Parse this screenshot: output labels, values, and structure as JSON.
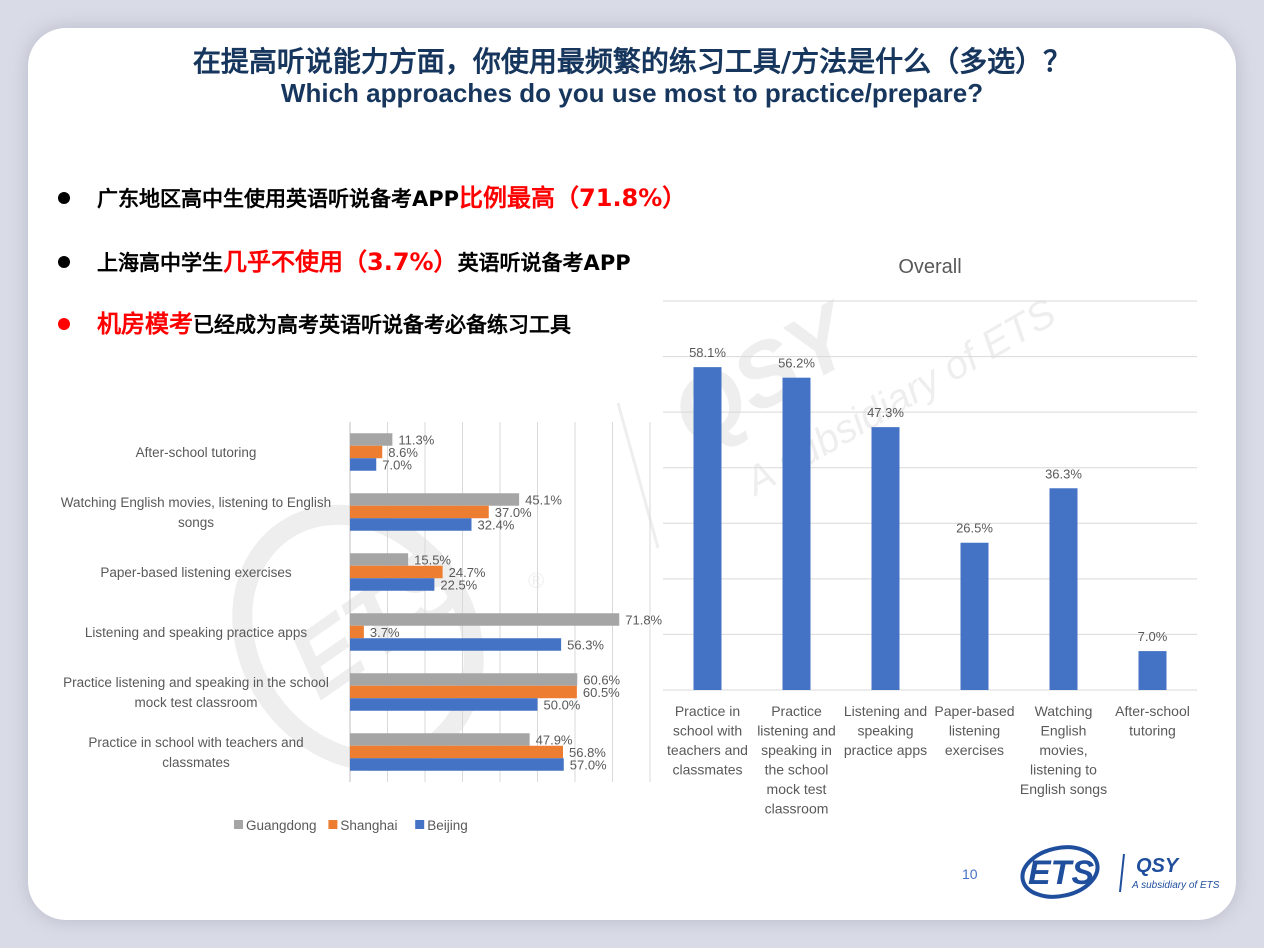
{
  "slide": {
    "title_zh": "在提高听说能力方面，你使用最频繁的练习工具/方法是什么（多选）？",
    "title_en": "Which approaches do you use most to practice/prepare?",
    "page_number": "10"
  },
  "bullets": [
    {
      "pre": "广东地区高中生使用英语听说备考APP",
      "hl": "比例最高（71.8%）",
      "post": "",
      "dot_color": "#000000"
    },
    {
      "pre": "上海高中学生",
      "hl": "几乎不使用（3.7%）",
      "post": "英语听说备考APP",
      "dot_color": "#000000"
    },
    {
      "pre": "",
      "hl": "机房模考",
      "post": "已经成为高考英语听说备考必备练习工具",
      "dot_color": "#ff0000"
    }
  ],
  "logo": {
    "ets": "ETS",
    "qsy": "QSY",
    "sub": "A subsidiary of ETS"
  },
  "watermark": {
    "ets": "ETS",
    "qsy": "QSY",
    "sub": "A subsidiary of ETS",
    "reg": "®"
  },
  "colors": {
    "title": "#17365d",
    "guangdong": "#a5a5a5",
    "shanghai": "#ed7d31",
    "beijing": "#4472c4",
    "overall_bar": "#4472c4",
    "highlight": "#ff0000"
  },
  "chart_data": [
    {
      "type": "bar",
      "orientation": "horizontal",
      "categories": [
        "After-school tutoring",
        "Watching English movies, listening to English songs",
        "Paper-based listening exercises",
        "Listening and speaking practice apps",
        "Practice listening and speaking in the school mock test classroom",
        "Practice in school with teachers and classmates"
      ],
      "series": [
        {
          "name": "Guangdong",
          "values": [
            11.3,
            45.1,
            15.5,
            71.8,
            60.6,
            47.9
          ],
          "labels": [
            "11.3%",
            "45.1%",
            "15.5%",
            "71.8%",
            "60.6%",
            "47.9%"
          ]
        },
        {
          "name": "Shanghai",
          "values": [
            8.6,
            37.0,
            24.7,
            3.7,
            60.5,
            56.8
          ],
          "labels": [
            "8.6%",
            "37.0%",
            "24.7%",
            "3.7%",
            "60.5%",
            "56.8%"
          ]
        },
        {
          "name": "Beijing",
          "values": [
            7.0,
            32.4,
            22.5,
            56.3,
            50.0,
            57.0
          ],
          "labels": [
            "7.0%",
            "32.4%",
            "22.5%",
            "56.3%",
            "50.0%",
            "57.0%"
          ]
        }
      ],
      "xlim": [
        0,
        80
      ],
      "grid": true,
      "legend": "bottom"
    },
    {
      "type": "bar",
      "title": "Overall",
      "categories": [
        "Practice in school with teachers and classmates",
        "Practice listening and speaking in the school mock test classroom",
        "Listening and speaking practice apps",
        "Paper-based listening exercises",
        "Watching English movies, listening to English songs",
        "After-school tutoring"
      ],
      "values": [
        58.1,
        56.2,
        47.3,
        26.5,
        36.3,
        7.0
      ],
      "labels": [
        "58.1%",
        "56.2%",
        "47.3%",
        "26.5%",
        "36.3%",
        "7.0%"
      ],
      "ylim": [
        0,
        70
      ],
      "grid": true
    }
  ]
}
